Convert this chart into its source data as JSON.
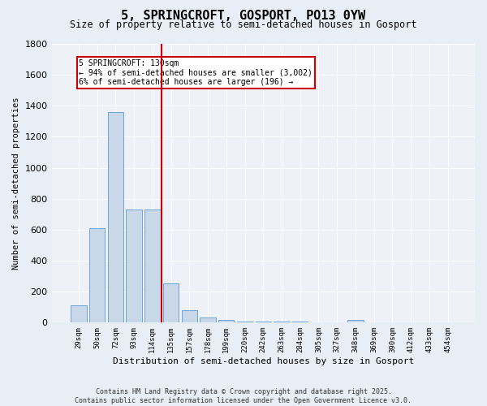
{
  "title": "5, SPRINGCROFT, GOSPORT, PO13 0YW",
  "subtitle": "Size of property relative to semi-detached houses in Gosport",
  "xlabel": "Distribution of semi-detached houses by size in Gosport",
  "ylabel": "Number of semi-detached properties",
  "categories": [
    "29sqm",
    "50sqm",
    "72sqm",
    "93sqm",
    "114sqm",
    "135sqm",
    "157sqm",
    "178sqm",
    "199sqm",
    "220sqm",
    "242sqm",
    "263sqm",
    "284sqm",
    "305sqm",
    "327sqm",
    "348sqm",
    "369sqm",
    "390sqm",
    "412sqm",
    "433sqm",
    "454sqm"
  ],
  "values": [
    110,
    610,
    1360,
    730,
    730,
    255,
    80,
    35,
    15,
    5,
    5,
    5,
    5,
    0,
    0,
    20,
    0,
    0,
    0,
    0,
    0
  ],
  "bar_color": "#c8d8e8",
  "bar_edge_color": "#5b9bd5",
  "vline_x": 4.5,
  "vline_color": "#cc0000",
  "annotation_text": "5 SPRINGCROFT: 130sqm\n← 94% of semi-detached houses are smaller (3,002)\n6% of semi-detached houses are larger (196) →",
  "annotation_box_color": "#cc0000",
  "ylim": [
    0,
    1800
  ],
  "footnote1": "Contains HM Land Registry data © Crown copyright and database right 2025.",
  "footnote2": "Contains public sector information licensed under the Open Government Licence v3.0.",
  "background_color": "#e8eef5",
  "plot_background_color": "#eef2f8",
  "grid_color": "#ffffff",
  "title_fontsize": 11,
  "subtitle_fontsize": 8.5,
  "xlabel_fontsize": 8,
  "ylabel_fontsize": 7.5,
  "tick_fontsize": 6.5,
  "ytick_fontsize": 8
}
